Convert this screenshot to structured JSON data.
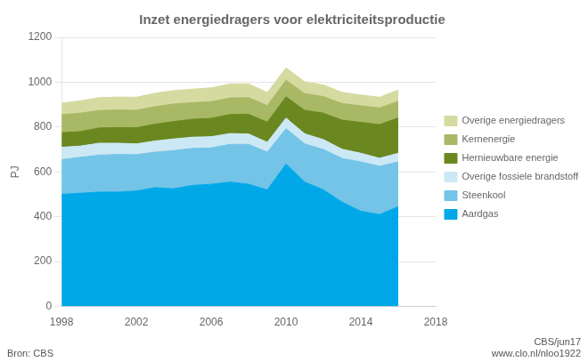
{
  "chart_data": {
    "type": "area",
    "stacked": true,
    "title": "Inzet energiedragers voor elektriciteitsproductie",
    "ylabel": "PJ",
    "annotations": [
      "Bron: CBS",
      "CBS/jun17\nwww.clo.nl/nloo1922"
    ],
    "x": [
      1998,
      1999,
      2000,
      2001,
      2002,
      2003,
      2004,
      2005,
      2006,
      2007,
      2008,
      2009,
      2010,
      2011,
      2012,
      2013,
      2014,
      2015,
      2016
    ],
    "series": [
      {
        "name": "Aardgas",
        "color": "#00a8e8",
        "values": [
          500,
          505,
          510,
          510,
          515,
          530,
          525,
          540,
          545,
          555,
          545,
          520,
          635,
          555,
          520,
          465,
          425,
          410,
          445
        ]
      },
      {
        "name": "Steenkool",
        "color": "#74c4e8",
        "values": [
          155,
          160,
          165,
          168,
          162,
          158,
          170,
          165,
          162,
          168,
          178,
          168,
          158,
          170,
          180,
          195,
          220,
          215,
          200
        ]
      },
      {
        "name": "Overige fossiele brandstoffen",
        "color": "#cce8f5",
        "values": [
          55,
          50,
          53,
          50,
          48,
          50,
          52,
          50,
          50,
          48,
          46,
          44,
          47,
          45,
          44,
          41,
          38,
          36,
          38
        ]
      },
      {
        "name": "Hernieuwbare energie",
        "color": "#6b8820",
        "values": [
          65,
          65,
          68,
          70,
          72,
          75,
          78,
          80,
          82,
          85,
          88,
          90,
          95,
          105,
          118,
          130,
          138,
          150,
          158
        ]
      },
      {
        "name": "Kernenergie",
        "color": "#a8b865",
        "values": [
          80,
          82,
          78,
          78,
          78,
          78,
          78,
          74,
          74,
          74,
          74,
          74,
          74,
          74,
          74,
          74,
          74,
          74,
          74
        ]
      },
      {
        "name": "Overige energiedragers",
        "color": "#d5dba0",
        "values": [
          52,
          55,
          57,
          58,
          58,
          60,
          60,
          60,
          62,
          62,
          62,
          58,
          55,
          53,
          52,
          50,
          48,
          48,
          50
        ]
      }
    ],
    "xlim": [
      1998,
      2018
    ],
    "xticks": [
      1998,
      2002,
      2006,
      2010,
      2014,
      2018
    ],
    "ylim": [
      0,
      1200
    ],
    "yticks": [
      0,
      200,
      400,
      600,
      800,
      1000,
      1200
    ],
    "grid": true,
    "legend": "right"
  }
}
